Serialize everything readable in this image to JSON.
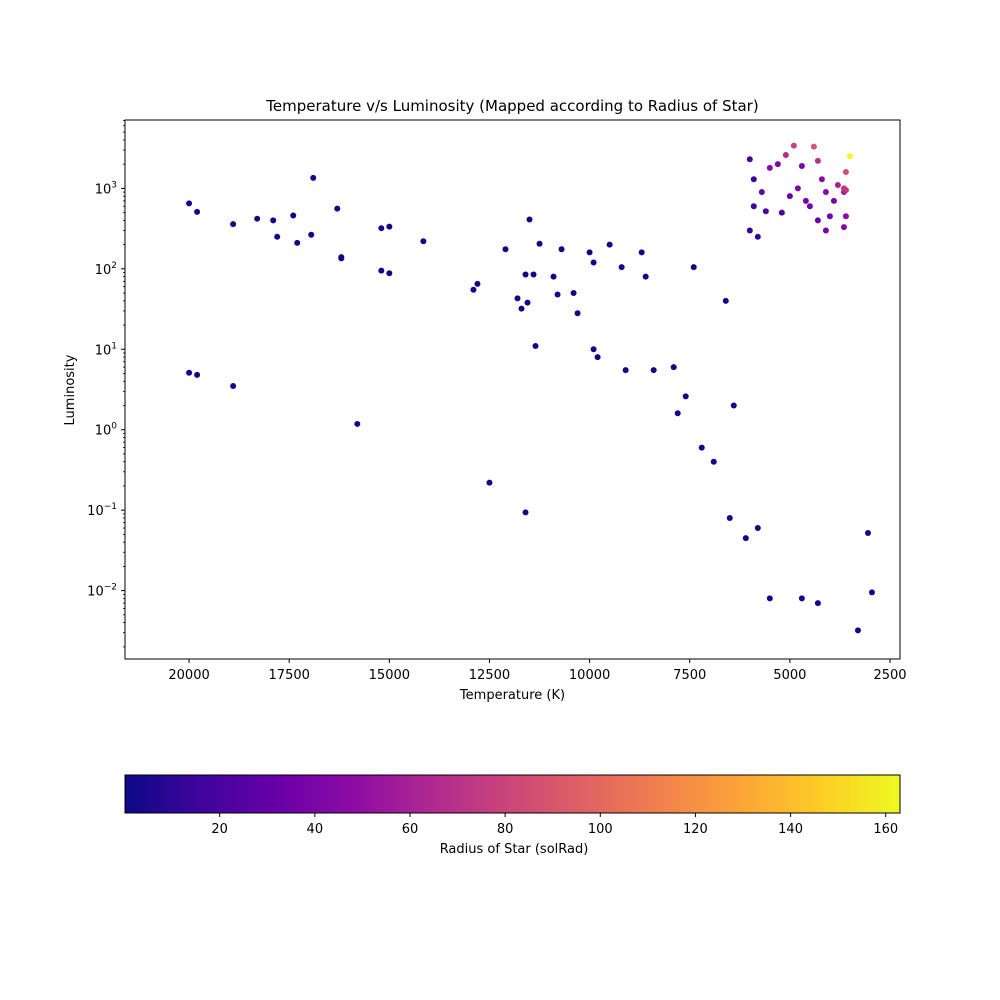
{
  "chart_data": {
    "type": "scatter",
    "title": "Temperature v/s Luminosity (Mapped according to Radius of Star)",
    "xlabel": "Temperature (K)",
    "ylabel": "Luminosity",
    "x_inverted": true,
    "xlim": [
      21600,
      2250
    ],
    "ylim_log10": [
      -2.85,
      3.85
    ],
    "y_scale": "log",
    "grid": false,
    "x_ticks": [
      20000,
      17500,
      15000,
      12500,
      10000,
      7500,
      5000,
      2500
    ],
    "x_tick_labels": [
      "20000",
      "17500",
      "15000",
      "12500",
      "10000",
      "7500",
      "5000",
      "2500"
    ],
    "y_ticks_log10": [
      -2,
      -1,
      0,
      1,
      2,
      3
    ],
    "y_tick_labels": [
      {
        "base": "10",
        "exp": "−2"
      },
      {
        "base": "10",
        "exp": "−1"
      },
      {
        "base": "10",
        "exp": "0"
      },
      {
        "base": "10",
        "exp": "1"
      },
      {
        "base": "10",
        "exp": "2"
      },
      {
        "base": "10",
        "exp": "3"
      }
    ],
    "colorbar": {
      "label": "Radius of Star (solRad)",
      "colormap": "plasma",
      "range": [
        0.1,
        163
      ],
      "ticks": [
        20,
        40,
        60,
        80,
        100,
        120,
        140,
        160
      ],
      "tick_labels": [
        "20",
        "40",
        "60",
        "80",
        "100",
        "120",
        "140",
        "160"
      ]
    },
    "marker_size": 3,
    "points_T_L_R": [
      [
        20000,
        650,
        1
      ],
      [
        19800,
        510,
        1
      ],
      [
        18900,
        360,
        1
      ],
      [
        18300,
        420,
        1
      ],
      [
        17900,
        400,
        1
      ],
      [
        17800,
        250,
        1
      ],
      [
        17400,
        460,
        1
      ],
      [
        17300,
        210,
        1
      ],
      [
        16950,
        265,
        1
      ],
      [
        16900,
        1350,
        2
      ],
      [
        16300,
        560,
        1
      ],
      [
        16200,
        140,
        1
      ],
      [
        16200,
        135,
        1
      ],
      [
        15200,
        320,
        1
      ],
      [
        15200,
        95,
        1
      ],
      [
        15000,
        335,
        1
      ],
      [
        15000,
        88,
        1
      ],
      [
        14150,
        220,
        1
      ],
      [
        12900,
        55,
        1
      ],
      [
        12800,
        65,
        1
      ],
      [
        12100,
        175,
        1
      ],
      [
        11800,
        43,
        1
      ],
      [
        11700,
        32,
        1
      ],
      [
        11600,
        85,
        1
      ],
      [
        11550,
        38,
        1
      ],
      [
        11500,
        410,
        1
      ],
      [
        11400,
        85,
        1
      ],
      [
        11250,
        205,
        1
      ],
      [
        11350,
        11,
        1
      ],
      [
        10900,
        80,
        1
      ],
      [
        10800,
        48,
        1
      ],
      [
        10700,
        175,
        1
      ],
      [
        10400,
        50,
        1
      ],
      [
        10300,
        28,
        1
      ],
      [
        20000,
        5.1,
        1
      ],
      [
        19800,
        4.8,
        1
      ],
      [
        18900,
        3.5,
        1
      ],
      [
        15800,
        1.18,
        1
      ],
      [
        12500,
        0.22,
        1
      ],
      [
        11600,
        0.094,
        1
      ],
      [
        10000,
        160,
        1
      ],
      [
        9900,
        120,
        1
      ],
      [
        9500,
        200,
        1
      ],
      [
        9200,
        105,
        1
      ],
      [
        8700,
        160,
        1
      ],
      [
        8600,
        80,
        1
      ],
      [
        9800,
        8,
        1
      ],
      [
        9900,
        10,
        1
      ],
      [
        9100,
        5.5,
        1
      ],
      [
        8400,
        5.5,
        1
      ],
      [
        7900,
        6,
        1
      ],
      [
        7800,
        1.6,
        1
      ],
      [
        7600,
        2.6,
        1
      ],
      [
        7400,
        105,
        1
      ],
      [
        7200,
        0.6,
        1
      ],
      [
        6900,
        0.4,
        1
      ],
      [
        6600,
        40,
        1
      ],
      [
        6400,
        2,
        1
      ],
      [
        6000,
        2300,
        18
      ],
      [
        5900,
        1300,
        14
      ],
      [
        5500,
        1800,
        45
      ],
      [
        5300,
        2000,
        42
      ],
      [
        5100,
        2600,
        65
      ],
      [
        4900,
        3400,
        80
      ],
      [
        4400,
        3300,
        90
      ],
      [
        4700,
        1900,
        40
      ],
      [
        4300,
        2200,
        70
      ],
      [
        4200,
        1300,
        48
      ],
      [
        4100,
        900,
        45
      ],
      [
        3800,
        1100,
        60
      ],
      [
        3650,
        900,
        55
      ],
      [
        3650,
        1000,
        75
      ],
      [
        3600,
        950,
        72
      ],
      [
        3600,
        1600,
        85
      ],
      [
        3500,
        2500,
        163
      ],
      [
        3600,
        450,
        46
      ],
      [
        3650,
        330,
        45
      ],
      [
        3900,
        700,
        38
      ],
      [
        4000,
        450,
        36
      ],
      [
        5700,
        900,
        28
      ],
      [
        6000,
        300,
        12
      ],
      [
        5800,
        250,
        10
      ],
      [
        5900,
        600,
        14
      ],
      [
        5000,
        800,
        34
      ],
      [
        4800,
        1000,
        40
      ],
      [
        4600,
        700,
        38
      ],
      [
        4500,
        600,
        36
      ],
      [
        4300,
        400,
        33
      ],
      [
        4100,
        300,
        38
      ],
      [
        5200,
        500,
        24
      ],
      [
        5600,
        520,
        20
      ],
      [
        6100,
        0.045,
        1
      ],
      [
        5500,
        0.008,
        1
      ],
      [
        4700,
        0.008,
        1
      ],
      [
        4300,
        0.007,
        1
      ],
      [
        3300,
        0.0032,
        1
      ],
      [
        2950,
        0.0095,
        1
      ],
      [
        3050,
        0.052,
        1
      ],
      [
        5800,
        0.06,
        1
      ],
      [
        6500,
        0.08,
        1
      ]
    ]
  }
}
